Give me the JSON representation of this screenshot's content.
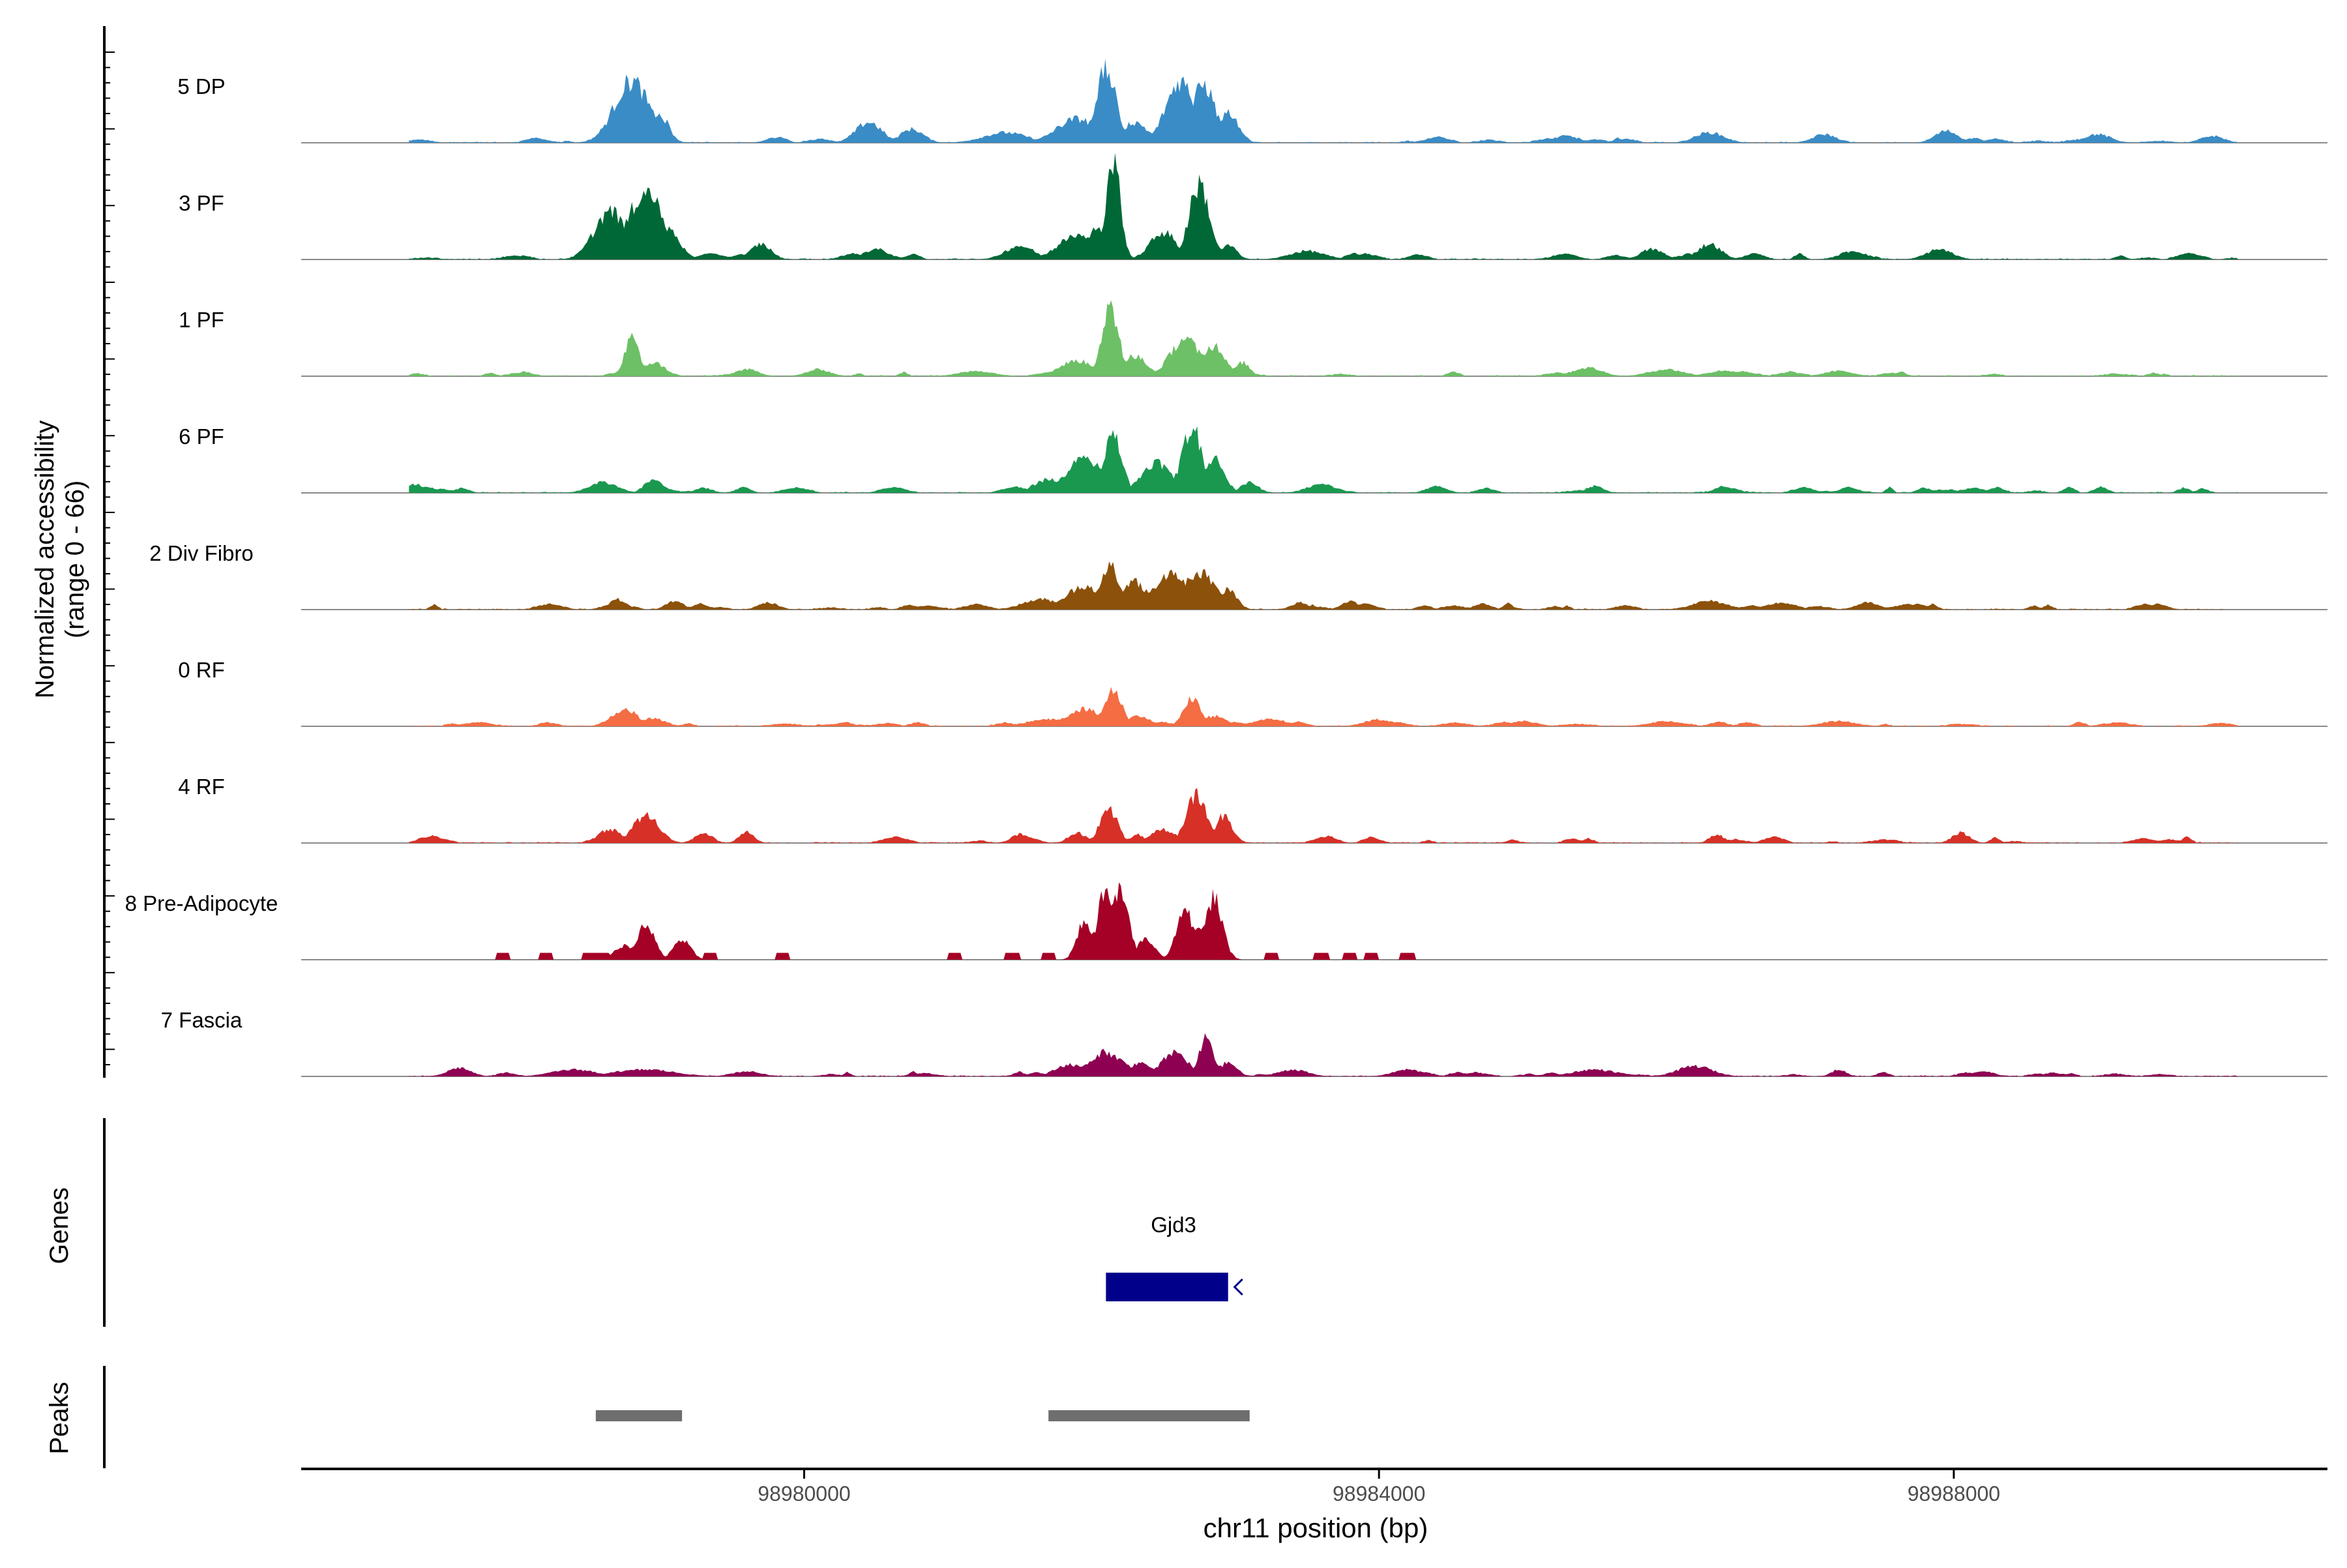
{
  "chart_data": {
    "type": "area",
    "subtype": "coverage-track",
    "yaxis_title_line1": "Normalized accessibility",
    "yaxis_title_line2": "(range 0 - 66)",
    "yrange": [
      0,
      66
    ],
    "xlabel": "chr11 position (bp)",
    "xlim": [
      98976500,
      98990600
    ],
    "xticks": [
      98980000,
      98984000,
      98988000
    ],
    "xtick_labels": [
      "98980000",
      "98984000",
      "98988000"
    ],
    "genes_label": "Genes",
    "peaks_label": "Peaks",
    "genes": [
      {
        "name": "Gjd3",
        "start": 98982100,
        "end": 98982950,
        "strand": "-",
        "color": "#00008B"
      }
    ],
    "peaks": [
      {
        "start": 98978550,
        "end": 98979150
      },
      {
        "start": 98981700,
        "end": 98983100
      }
    ],
    "peak_color": "#6e6e6e",
    "series": [
      {
        "name": "5 DP",
        "color": "#3A8CC6",
        "peaks": [
          [
            98978800,
            120,
            36
          ],
          [
            98978700,
            80,
            14
          ],
          [
            98979000,
            60,
            16
          ],
          [
            98980450,
            90,
            12
          ],
          [
            98980750,
            80,
            8
          ],
          [
            98981400,
            150,
            6
          ],
          [
            98981900,
            140,
            14
          ],
          [
            98982100,
            70,
            42
          ],
          [
            98982300,
            90,
            12
          ],
          [
            98982620,
            100,
            36
          ],
          [
            98982780,
            80,
            34
          ],
          [
            98982950,
            70,
            18
          ],
          [
            98985300,
            90,
            4
          ],
          [
            98986300,
            100,
            6
          ],
          [
            98987100,
            80,
            5
          ],
          [
            98987950,
            80,
            7
          ],
          [
            98989000,
            90,
            5
          ],
          [
            98989800,
            80,
            4
          ]
        ],
        "sparse": false,
        "nspikes": 30,
        "maxspike": 3
      },
      {
        "name": "3 PF",
        "color": "#006837",
        "peaks": [
          [
            98978650,
            110,
            28
          ],
          [
            98978900,
            120,
            40
          ],
          [
            98979050,
            80,
            18
          ],
          [
            98979700,
            70,
            9
          ],
          [
            98980500,
            90,
            6
          ],
          [
            98981500,
            100,
            8
          ],
          [
            98981900,
            130,
            14
          ],
          [
            98982150,
            50,
            58
          ],
          [
            98982030,
            70,
            18
          ],
          [
            98982500,
            90,
            16
          ],
          [
            98982750,
            70,
            44
          ],
          [
            98982950,
            60,
            8
          ],
          [
            98983500,
            120,
            5
          ],
          [
            98985900,
            80,
            6
          ],
          [
            98986300,
            80,
            9
          ],
          [
            98987300,
            90,
            5
          ],
          [
            98987900,
            90,
            6
          ]
        ],
        "sparse": false,
        "nspikes": 38,
        "maxspike": 3
      },
      {
        "name": "1 PF",
        "color": "#6DC066",
        "peaks": [
          [
            98978800,
            50,
            22
          ],
          [
            98978950,
            80,
            8
          ],
          [
            98979600,
            80,
            4
          ],
          [
            98980100,
            80,
            4
          ],
          [
            98981200,
            120,
            3
          ],
          [
            98981900,
            120,
            9
          ],
          [
            98982130,
            60,
            40
          ],
          [
            98982300,
            80,
            12
          ],
          [
            98982650,
            100,
            22
          ],
          [
            98982850,
            80,
            18
          ],
          [
            98983050,
            50,
            8
          ],
          [
            98985450,
            100,
            5
          ],
          [
            98986000,
            120,
            4
          ],
          [
            98986400,
            120,
            3
          ],
          [
            98987200,
            100,
            3
          ]
        ],
        "sparse": false,
        "nspikes": 34,
        "maxspike": 2
      },
      {
        "name": "6 PF",
        "color": "#1A9850",
        "peaks": [
          [
            98977300,
            60,
            5
          ],
          [
            98978600,
            100,
            6
          ],
          [
            98978950,
            60,
            8
          ],
          [
            98979300,
            60,
            3
          ],
          [
            98981700,
            100,
            8
          ],
          [
            98981950,
            120,
            20
          ],
          [
            98982150,
            60,
            34
          ],
          [
            98982450,
            100,
            18
          ],
          [
            98982700,
            70,
            38
          ],
          [
            98982850,
            70,
            20
          ],
          [
            98983100,
            60,
            6
          ],
          [
            98983600,
            100,
            5
          ],
          [
            98984400,
            70,
            4
          ],
          [
            98985500,
            60,
            4
          ],
          [
            98986400,
            60,
            4
          ],
          [
            98987800,
            50,
            3
          ],
          [
            98989600,
            40,
            3
          ]
        ],
        "sparse": false,
        "nspikes": 44,
        "maxspike": 3
      },
      {
        "name": "2 Div Fibro",
        "color": "#8C510A",
        "peaks": [
          [
            98978700,
            60,
            6
          ],
          [
            98979100,
            60,
            5
          ],
          [
            98979750,
            70,
            4
          ],
          [
            98981650,
            130,
            6
          ],
          [
            98981950,
            120,
            14
          ],
          [
            98982130,
            60,
            26
          ],
          [
            98982300,
            90,
            16
          ],
          [
            98982550,
            110,
            22
          ],
          [
            98982750,
            110,
            22
          ],
          [
            98982950,
            60,
            12
          ],
          [
            98983450,
            60,
            4
          ],
          [
            98983800,
            60,
            5
          ],
          [
            98986300,
            120,
            5
          ],
          [
            98986800,
            100,
            4
          ],
          [
            98987400,
            80,
            4
          ]
        ],
        "sparse": false,
        "nspikes": 44,
        "maxspike": 3
      },
      {
        "name": "0 RF",
        "color": "#F46D43",
        "peaks": [
          [
            98978750,
            90,
            10
          ],
          [
            98978950,
            80,
            5
          ],
          [
            98981700,
            150,
            4
          ],
          [
            98981950,
            120,
            10
          ],
          [
            98982150,
            60,
            22
          ],
          [
            98982330,
            80,
            6
          ],
          [
            98982700,
            60,
            16
          ],
          [
            98982850,
            80,
            6
          ],
          [
            98983250,
            120,
            4
          ],
          [
            98984000,
            100,
            4
          ],
          [
            98985000,
            100,
            3
          ],
          [
            98986000,
            120,
            3
          ],
          [
            98987200,
            120,
            3
          ]
        ],
        "sparse": false,
        "nspikes": 40,
        "maxspike": 2
      },
      {
        "name": "4 RF",
        "color": "#D73027",
        "peaks": [
          [
            98977400,
            80,
            4
          ],
          [
            98978650,
            80,
            8
          ],
          [
            98978900,
            90,
            16
          ],
          [
            98979300,
            60,
            6
          ],
          [
            98979600,
            50,
            7
          ],
          [
            98981500,
            60,
            5
          ],
          [
            98981900,
            60,
            6
          ],
          [
            98982120,
            60,
            20
          ],
          [
            98982320,
            50,
            5
          ],
          [
            98982500,
            80,
            8
          ],
          [
            98982730,
            70,
            28
          ],
          [
            98982920,
            60,
            16
          ],
          [
            98983650,
            60,
            4
          ],
          [
            98986350,
            50,
            5
          ],
          [
            98988050,
            60,
            6
          ]
        ],
        "sparse": false,
        "nspikes": 30,
        "maxspike": 3
      },
      {
        "name": "8 Pre-Adipocyte",
        "color": "#A50026",
        "peaks": [
          [
            98978900,
            60,
            20
          ],
          [
            98979150,
            60,
            12
          ],
          [
            98978750,
            70,
            8
          ],
          [
            98981950,
            50,
            22
          ],
          [
            98982100,
            60,
            40
          ],
          [
            98982200,
            60,
            40
          ],
          [
            98982000,
            50,
            16
          ],
          [
            98982380,
            60,
            12
          ],
          [
            98982650,
            60,
            30
          ],
          [
            98982850,
            60,
            36
          ],
          [
            98982750,
            40,
            22
          ]
        ],
        "sparse": true,
        "blocks": [
          [
            98977850,
            98977950,
            4
          ],
          [
            98978150,
            98978250,
            4
          ],
          [
            98978450,
            98978650,
            4
          ],
          [
            98978700,
            98978900,
            4
          ],
          [
            98979300,
            98979400,
            4
          ],
          [
            98979800,
            98979900,
            4
          ],
          [
            98981000,
            98981100,
            4
          ],
          [
            98981400,
            98981500,
            4
          ],
          [
            98981650,
            98981750,
            4
          ],
          [
            98981850,
            98981950,
            4
          ],
          [
            98983200,
            98983300,
            4
          ],
          [
            98983550,
            98983650,
            4
          ],
          [
            98983750,
            98983850,
            4
          ],
          [
            98983900,
            98984000,
            4
          ],
          [
            98984150,
            98984250,
            4
          ]
        ]
      },
      {
        "name": "7 Fascia",
        "color": "#8E0152",
        "peaks": [
          [
            98977600,
            80,
            5
          ],
          [
            98978400,
            150,
            4
          ],
          [
            98978900,
            200,
            4
          ],
          [
            98979600,
            100,
            3
          ],
          [
            98981850,
            100,
            7
          ],
          [
            98982100,
            120,
            14
          ],
          [
            98982350,
            80,
            8
          ],
          [
            98982580,
            90,
            14
          ],
          [
            98982800,
            50,
            22
          ],
          [
            98982950,
            60,
            8
          ],
          [
            98983400,
            100,
            4
          ],
          [
            98984200,
            100,
            4
          ],
          [
            98985500,
            150,
            4
          ],
          [
            98986200,
            120,
            6
          ],
          [
            98987200,
            50,
            4
          ],
          [
            98988200,
            80,
            3
          ]
        ],
        "sparse": false,
        "nspikes": 34,
        "maxspike": 2
      }
    ]
  }
}
